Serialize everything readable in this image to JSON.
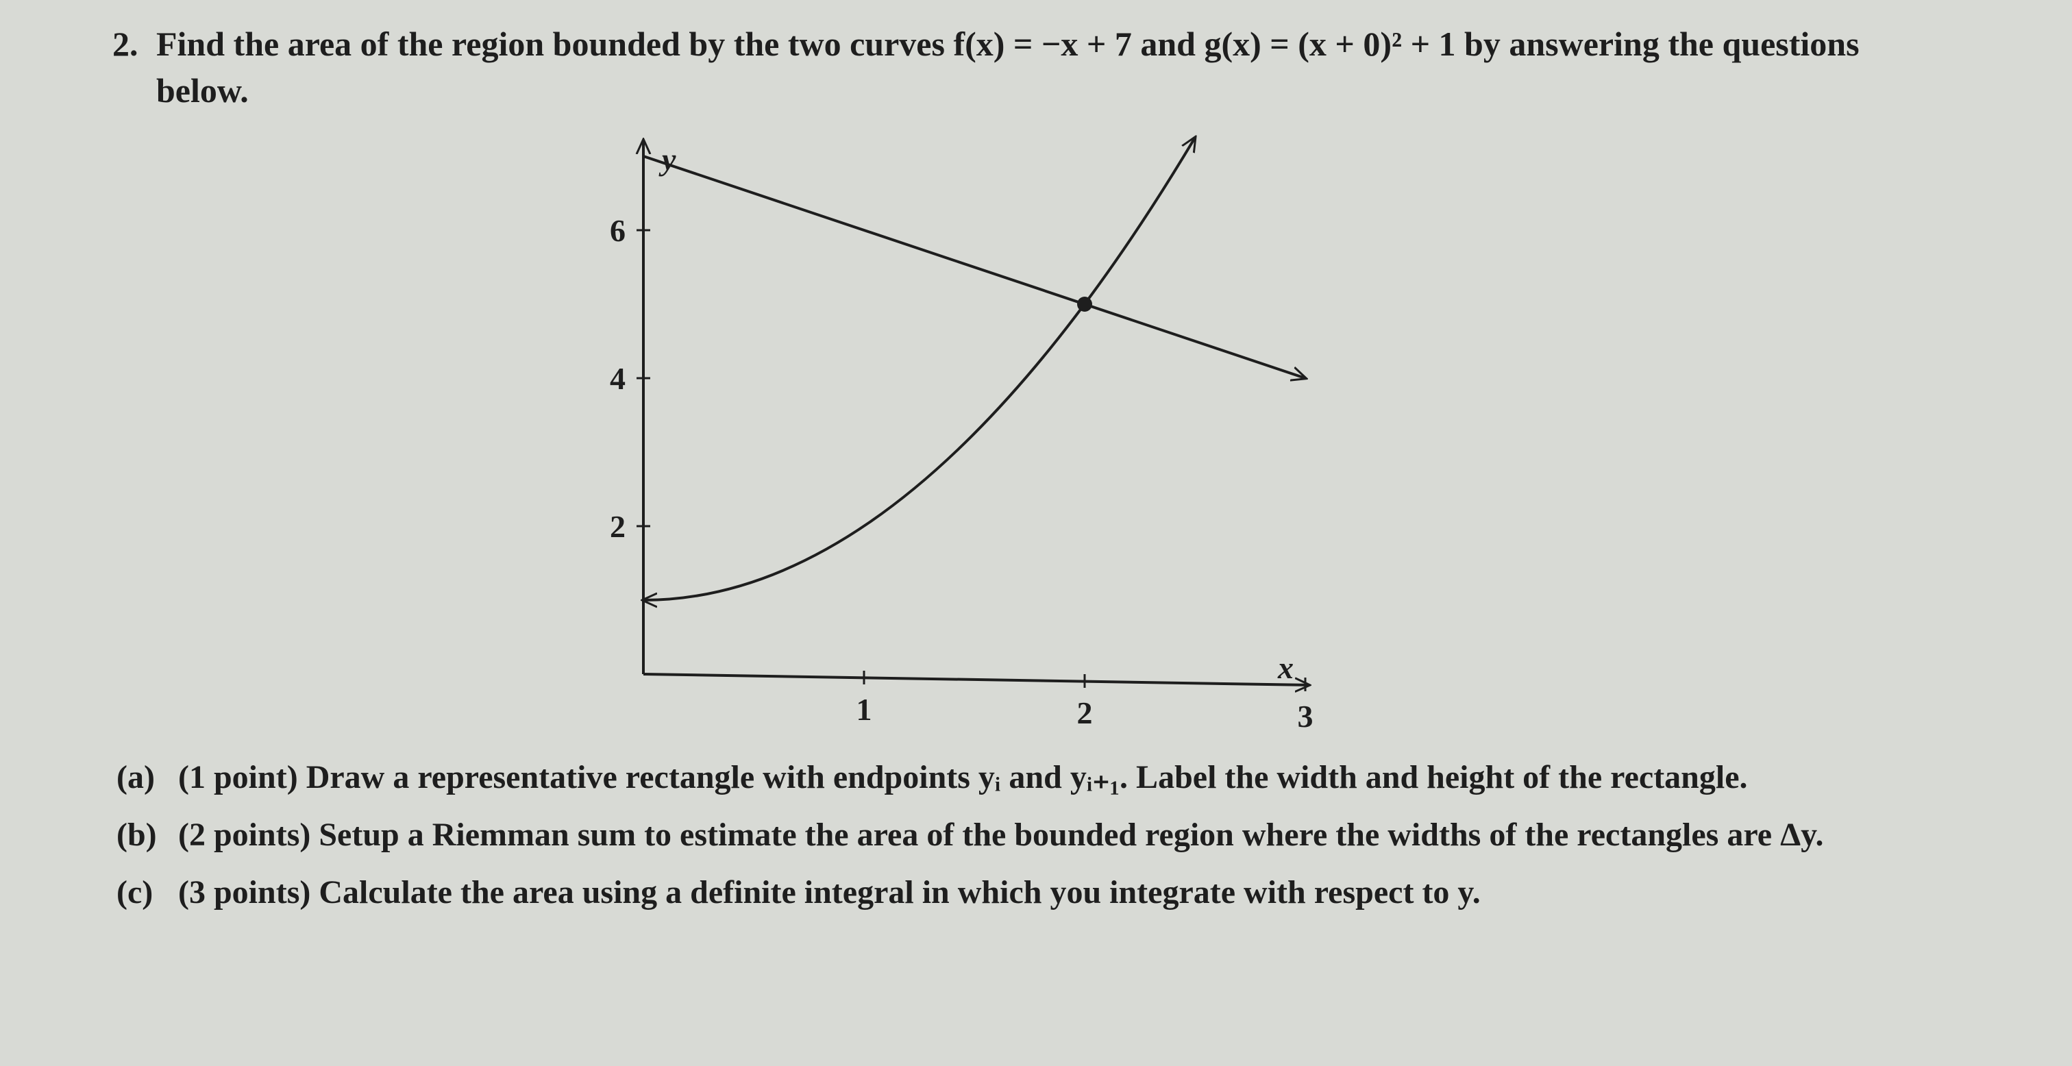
{
  "question": {
    "number": "2.",
    "text": "Find the area of the region bounded by the two curves f(x) = −x + 7 and g(x) = (x + 0)² + 1 by answering the questions below."
  },
  "figure": {
    "x_label": "x",
    "y_label": "y",
    "xlim": [
      0,
      3.1
    ],
    "ylim": [
      0,
      7.2
    ],
    "xticks": [
      1,
      2,
      3
    ],
    "yticks": [
      2,
      4,
      6
    ]
  },
  "parts": [
    {
      "label": "(a)",
      "points": "(1 point)",
      "text": "Draw a representative rectangle with endpoints yᵢ and yᵢ₊₁. Label the width and height of the rectangle."
    },
    {
      "label": "(b)",
      "points": "(2 points)",
      "text": "Setup a Riemman sum to estimate the area of the bounded region where the widths of the rectangles are Δy."
    },
    {
      "label": "(c)",
      "points": "(3 points)",
      "text": "Calculate the area using a definite integral in which you integrate with respect to y."
    }
  ]
}
